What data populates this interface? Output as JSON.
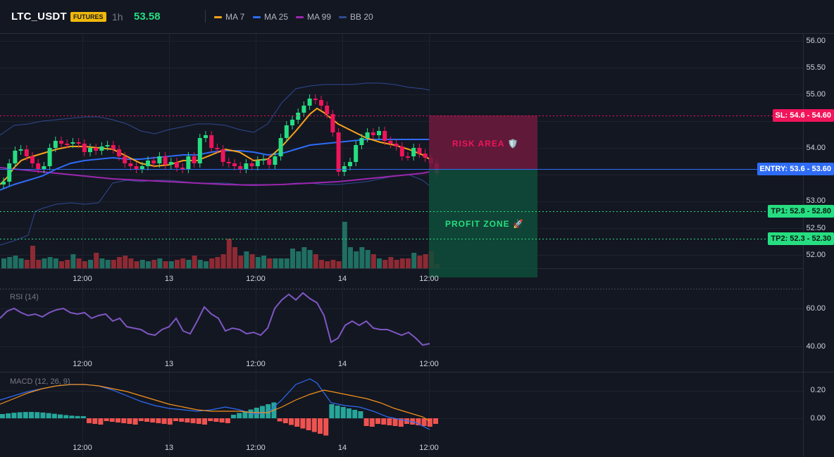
{
  "header": {
    "symbol": "LTC_USDT",
    "badge": "FUTURES",
    "timeframe": "1h",
    "last_price": "53.58",
    "legend": [
      {
        "label": "MA 7",
        "color": "#f7a21b"
      },
      {
        "label": "MA 25",
        "color": "#2e6cf6"
      },
      {
        "label": "MA 99",
        "color": "#9c27b0"
      },
      {
        "label": "BB 20",
        "color": "#2f4a8f"
      }
    ]
  },
  "price_axis": [
    "56.00",
    "55.50",
    "55.00",
    "54.00",
    "53.00",
    "52.50",
    "52.00"
  ],
  "time_axis": [
    "12:00",
    "13",
    "12:00",
    "14",
    "12:00"
  ],
  "trade": {
    "risk_label": "RISK AREA 🛡️",
    "profit_label": "PROFIT ZONE 🚀",
    "sl_tag": "SL: 54.6 - 54.60",
    "entry_tag": "ENTRY: 53.6 - 53.60",
    "tp1_tag": "TP1: 52.8 - 52.80",
    "tp2_tag": "TP2: 52.3 - 52.30",
    "sl": 54.6,
    "entry": 53.6,
    "tp1": 52.8,
    "tp2": 52.3
  },
  "rsi": {
    "label": "RSI (14)",
    "axis": [
      "60.00",
      "40.00"
    ]
  },
  "macd": {
    "label": "MACD (12, 26, 9)",
    "axis": [
      "0.20",
      "0.00"
    ]
  },
  "colors": {
    "up": "#26de81",
    "down": "#f0145a",
    "vol_up": "#1f6f62",
    "vol_down": "#8e2a33",
    "rsi": "#7e57c2",
    "macd": "#2e6cf6",
    "signal": "#f7931a"
  }
}
